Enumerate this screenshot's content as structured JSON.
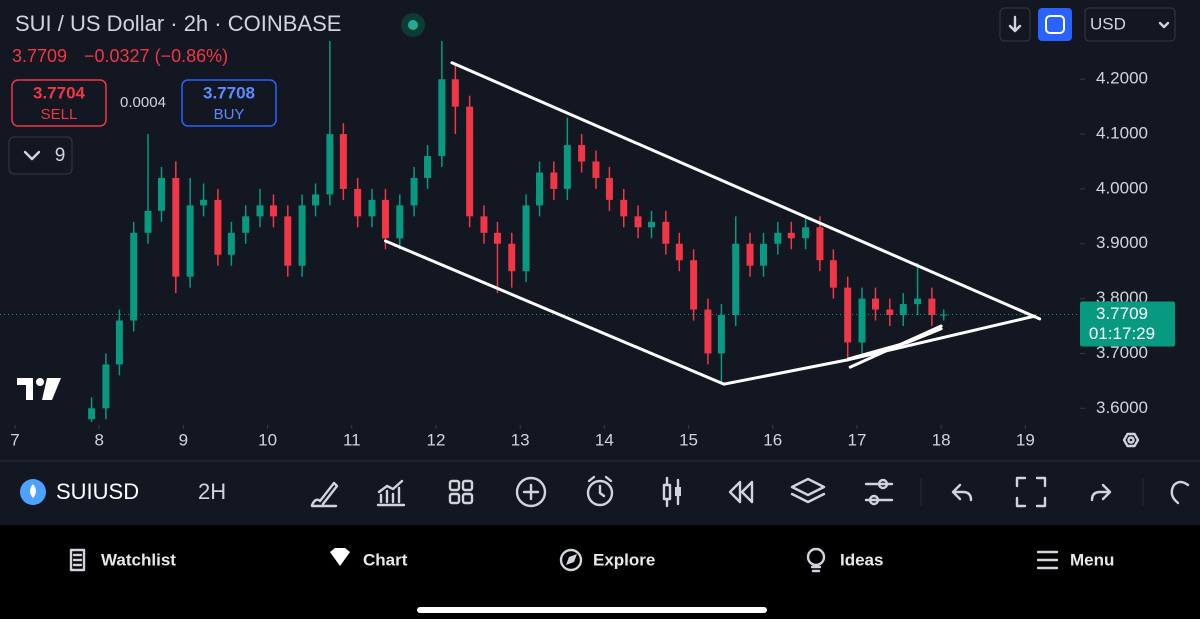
{
  "header": {
    "title": "SUI / US Dollar · 2h · COINBASE",
    "change": "−0.0327 (−0.86%)",
    "sell_price": "3.7704",
    "sell_label": "SELL",
    "spread": "0.0004",
    "buy_price": "3.7708",
    "buy_label": "BUY",
    "indicator_count": "9",
    "currency": "USD"
  },
  "chart_data": {
    "type": "candlestick",
    "up_color": "#089981",
    "down_color": "#f23645",
    "last_price": 3.7709,
    "last_price_color": "#089981",
    "countdown": "01:17:29",
    "xlim": [
      6.822,
      19.649
    ],
    "xticks": [
      7,
      8,
      9,
      10,
      11,
      12,
      13,
      14,
      15,
      16,
      17,
      18,
      19
    ],
    "ylim": [
      3.5695,
      4.3445
    ],
    "yticks": [
      {
        "value": 3.6,
        "label": "3.6000"
      },
      {
        "value": 3.7,
        "label": "3.7000"
      },
      {
        "value": 3.8,
        "label": "3.8000"
      },
      {
        "value": 3.9,
        "label": "3.9000"
      },
      {
        "value": 4.0,
        "label": "4.0000"
      },
      {
        "value": 4.1,
        "label": "4.1000"
      },
      {
        "value": 4.2,
        "label": "4.2000"
      }
    ],
    "x": [
      7.91,
      8.08,
      8.24,
      8.41,
      8.58,
      8.74,
      8.91,
      9.08,
      9.24,
      9.41,
      9.57,
      9.74,
      9.91,
      10.07,
      10.24,
      10.41,
      10.57,
      10.74,
      10.9,
      11.07,
      11.24,
      11.4,
      11.57,
      11.74,
      11.9,
      12.07,
      12.23,
      12.4,
      12.57,
      12.73,
      12.9,
      13.07,
      13.23,
      13.4,
      13.56,
      13.73,
      13.9,
      14.06,
      14.23,
      14.4,
      14.56,
      14.73,
      14.89,
      15.06,
      15.23,
      15.39,
      15.56,
      15.73,
      15.89,
      16.06,
      16.22,
      16.39,
      16.56,
      16.72,
      16.89,
      17.06,
      17.22,
      17.39,
      17.55,
      17.72,
      17.89,
      18.03
    ],
    "open": [
      3.58,
      3.6,
      3.68,
      3.76,
      3.92,
      3.96,
      4.02,
      3.84,
      3.97,
      3.98,
      3.88,
      3.92,
      3.95,
      3.97,
      3.95,
      3.86,
      3.97,
      3.99,
      4.1,
      4.0,
      3.95,
      3.98,
      3.91,
      3.97,
      4.02,
      4.06,
      4.2,
      4.15,
      3.95,
      3.92,
      3.9,
      3.85,
      3.97,
      4.03,
      4.0,
      4.08,
      4.05,
      4.02,
      3.98,
      3.95,
      3.93,
      3.94,
      3.9,
      3.87,
      3.78,
      3.7,
      3.77,
      3.9,
      3.86,
      3.9,
      3.92,
      3.91,
      3.93,
      3.87,
      3.82,
      3.72,
      3.8,
      3.78,
      3.77,
      3.79,
      3.8,
      3.77
    ],
    "high": [
      3.62,
      3.7,
      3.78,
      3.94,
      4.1,
      4.04,
      4.05,
      4.02,
      4.01,
      4.0,
      3.94,
      3.97,
      4.0,
      3.99,
      3.97,
      3.99,
      4.01,
      4.27,
      4.12,
      4.02,
      4.0,
      4.0,
      3.99,
      4.04,
      4.08,
      4.27,
      4.23,
      4.17,
      3.97,
      3.94,
      3.92,
      3.99,
      4.05,
      4.05,
      4.13,
      4.1,
      4.07,
      4.04,
      4.0,
      3.97,
      3.96,
      3.96,
      3.92,
      3.89,
      3.8,
      3.79,
      3.95,
      3.92,
      3.92,
      3.94,
      3.94,
      3.95,
      3.95,
      3.89,
      3.84,
      3.82,
      3.82,
      3.8,
      3.81,
      3.865,
      3.82,
      3.78
    ],
    "low": [
      3.575,
      3.58,
      3.66,
      3.74,
      3.9,
      3.94,
      3.81,
      3.82,
      3.95,
      3.86,
      3.86,
      3.9,
      3.93,
      3.93,
      3.84,
      3.84,
      3.95,
      3.97,
      3.98,
      3.93,
      3.93,
      3.89,
      3.89,
      3.95,
      4.0,
      4.04,
      4.1,
      3.93,
      3.9,
      3.81,
      3.82,
      3.83,
      3.95,
      3.98,
      3.98,
      4.03,
      4.0,
      3.96,
      3.93,
      3.91,
      3.91,
      3.88,
      3.85,
      3.76,
      3.68,
      3.645,
      3.75,
      3.84,
      3.84,
      3.88,
      3.89,
      3.89,
      3.85,
      3.8,
      3.685,
      3.7,
      3.76,
      3.75,
      3.75,
      3.77,
      3.75,
      3.76
    ],
    "close": [
      3.6,
      3.68,
      3.76,
      3.92,
      3.96,
      4.02,
      3.84,
      3.97,
      3.98,
      3.88,
      3.92,
      3.95,
      3.97,
      3.95,
      3.86,
      3.97,
      3.99,
      4.1,
      4.0,
      3.95,
      3.98,
      3.91,
      3.97,
      4.02,
      4.06,
      4.2,
      4.15,
      3.95,
      3.92,
      3.9,
      3.85,
      3.97,
      4.03,
      4.0,
      4.08,
      4.05,
      4.02,
      3.98,
      3.95,
      3.93,
      3.94,
      3.9,
      3.87,
      3.78,
      3.7,
      3.77,
      3.9,
      3.86,
      3.9,
      3.92,
      3.91,
      3.93,
      3.87,
      3.82,
      3.72,
      3.8,
      3.78,
      3.77,
      3.79,
      3.8,
      3.77,
      3.7709
    ],
    "drawings_color": "#ffffff",
    "drawings": [
      {
        "x": [
          12.19,
          19.17
        ],
        "y": [
          4.23,
          3.763
        ]
      },
      {
        "x": [
          11.4,
          15.42,
          16.88,
          19.11
        ],
        "y": [
          3.905,
          3.644,
          3.688,
          3.768
        ]
      },
      {
        "x": [
          16.92,
          18.0
        ],
        "y": [
          3.675,
          3.75
        ]
      },
      {
        "x": [
          16.9,
          17.6,
          18.0
        ],
        "y": [
          3.69,
          3.72,
          3.745
        ]
      }
    ]
  },
  "toolbar": {
    "symbol": "SUIUSD",
    "interval": "2H"
  },
  "nav": {
    "items": [
      "Watchlist",
      "Chart",
      "Explore",
      "Ideas",
      "Menu"
    ]
  }
}
